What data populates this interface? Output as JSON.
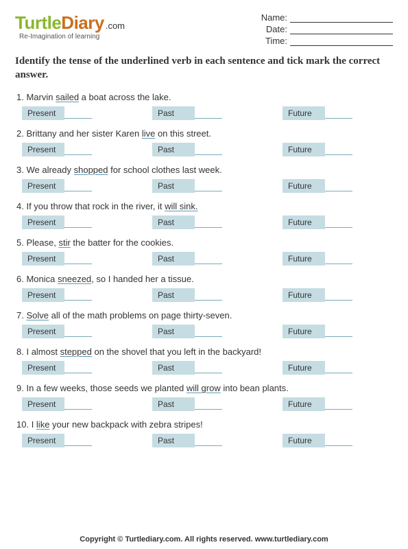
{
  "brand": {
    "name_turtle": "Turtle",
    "name_diary": "Diary",
    "dotcom": ".com",
    "tagline": "Re-Imagination of learning"
  },
  "header_fields": {
    "name": "Name:",
    "date": "Date:",
    "time": "Time:"
  },
  "instructions": "Identify the tense of the underlined verb in each sentence and tick mark the correct answer.",
  "option_labels": {
    "present": "Present",
    "past": "Past",
    "future": "Future"
  },
  "questions": [
    {
      "num": "1.",
      "pre": "Marvin ",
      "u": "sailed",
      "post": " a boat across the lake."
    },
    {
      "num": "2.",
      "pre": "Brittany and her sister Karen ",
      "u": "live",
      "post": " on this street."
    },
    {
      "num": "3.",
      "pre": "We already ",
      "u": "shopped",
      "post": " for school clothes last week."
    },
    {
      "num": "4.",
      "pre": "If you throw that rock in the river, it ",
      "u": "will sink.",
      "post": ""
    },
    {
      "num": "5.",
      "pre": "Please, ",
      "u": "stir",
      "post": " the batter for the cookies."
    },
    {
      "num": "6.",
      "pre": "Monica ",
      "u": "sneezed",
      "post": ", so I handed her a tissue."
    },
    {
      "num": "7.",
      "pre": "",
      "u": "Solve",
      "post": " all of the math problems on page thirty-seven."
    },
    {
      "num": "8.",
      "pre": "I almost ",
      "u": "stepped",
      "post": " on the shovel that you left in the backyard!"
    },
    {
      "num": "9.",
      "pre": "In a few weeks, those seeds we planted ",
      "u": "will grow",
      "post": " into bean plants."
    },
    {
      "num": "10.",
      "pre": "I ",
      "u": "like",
      "post": " your new backpack with zebra stripes!"
    }
  ],
  "footer": "Copyright © Turtlediary.com. All rights reserved. www.turtlediary.com",
  "colors": {
    "option_bg": "#c6dce3",
    "underline": "#5a9bb8",
    "logo_green": "#8ab82d",
    "logo_orange": "#c96f1f"
  }
}
